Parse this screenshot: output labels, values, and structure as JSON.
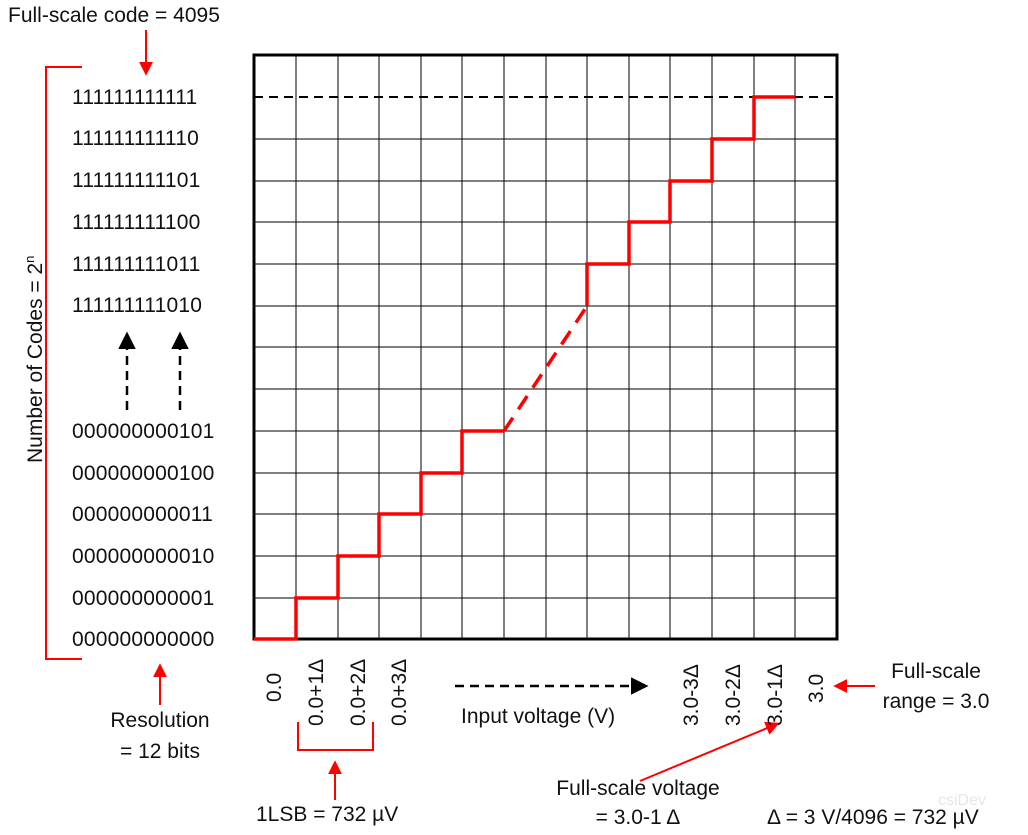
{
  "labels": {
    "full_scale_code": "Full-scale code = 4095",
    "number_of_codes": "Number of Codes = 2",
    "number_of_codes_exp": "n",
    "resolution_line1": "Resolution",
    "resolution_line2": "= 12 bits",
    "input_voltage": "Input voltage (V)",
    "full_scale_range_line1": "Full-scale",
    "full_scale_range_line2": "range = 3.0",
    "lsb": "1LSB = 732 µV",
    "full_scale_voltage_line1": "Full-scale voltage",
    "full_scale_voltage_line2": "= 3.0-1 Δ",
    "delta_def": "Δ = 3 V/4096 = 732 µV"
  },
  "codes_top": [
    "111111111111",
    "111111111110",
    "111111111101",
    "111111111100",
    "111111111011",
    "111111111010"
  ],
  "codes_bottom": [
    "000000000101",
    "000000000100",
    "000000000011",
    "000000000010",
    "000000000001",
    "000000000000"
  ],
  "x_ticks_left": [
    "0.0",
    "0.0+1Δ",
    "0.0+2Δ",
    "0.0+3Δ"
  ],
  "x_ticks_right": [
    "3.0-3Δ",
    "3.0-2Δ",
    "3.0-1Δ",
    "3.0"
  ],
  "colors": {
    "accent": "#ff0000",
    "grid": "#000000",
    "text": "#111111"
  },
  "watermark": "csiDev"
}
